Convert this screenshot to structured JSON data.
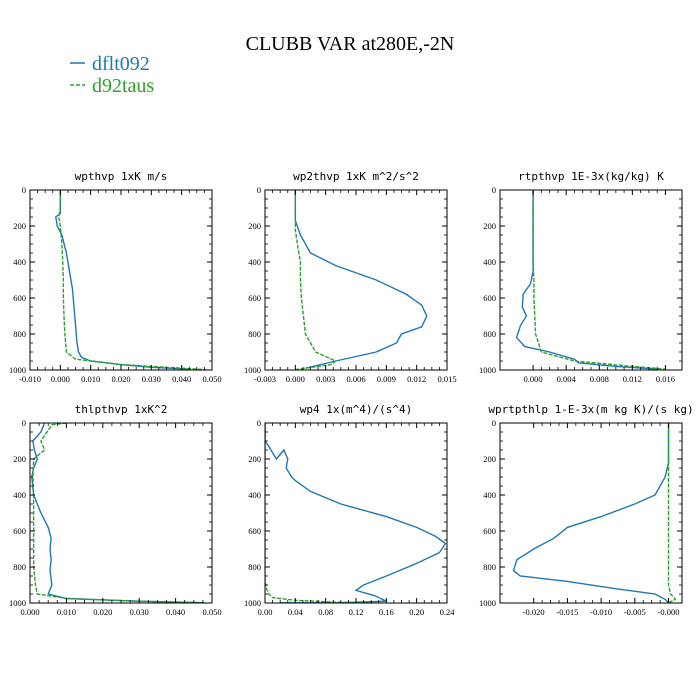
{
  "figure": {
    "title": "CLUBB VAR at280E,-2N",
    "legend": [
      {
        "label": "dflt092",
        "color": "#1f77b4"
      },
      {
        "label": "d92taus",
        "color": "#2ca02c"
      }
    ]
  },
  "chart_data": [
    {
      "type": "line",
      "title": "wpthvp  1xK m/s",
      "xlim": [
        -0.01,
        0.05
      ],
      "ylim": [
        1000,
        0
      ],
      "xticks": [
        -0.01,
        0.0,
        0.01,
        0.02,
        0.03,
        0.04,
        0.05
      ],
      "xtick_labels": [
        "-0.010",
        "0.000",
        "0.010",
        "0.020",
        "0.030",
        "0.040",
        "0.050"
      ],
      "yticks": [
        0,
        200,
        400,
        600,
        800,
        1000
      ],
      "ytick_labels": [
        "0",
        "200",
        "400",
        "600",
        "800",
        "1000"
      ],
      "series": [
        {
          "name": "dflt092",
          "color": "#1f77b4",
          "dash": "solid",
          "x": [
            0.0,
            0.0,
            0.0,
            -0.0015,
            -0.001,
            0.0005,
            0.002,
            0.003,
            0.004,
            0.0045,
            0.005,
            0.0055,
            0.006,
            0.007,
            0.01,
            0.02,
            0.03,
            0.042
          ],
          "y": [
            0,
            50,
            130,
            150,
            200,
            250,
            350,
            450,
            550,
            650,
            750,
            850,
            900,
            930,
            950,
            970,
            985,
            995
          ]
        },
        {
          "name": "d92taus",
          "color": "#2ca02c",
          "dash": "dashed",
          "x": [
            0.0,
            0.0,
            -0.0005,
            0.0,
            0.0005,
            0.0008,
            0.001,
            0.001,
            0.0012,
            0.0015,
            0.002,
            0.005,
            0.02,
            0.04,
            0.048
          ],
          "y": [
            0,
            100,
            150,
            200,
            300,
            400,
            500,
            600,
            700,
            800,
            900,
            940,
            970,
            990,
            998
          ]
        }
      ]
    },
    {
      "type": "line",
      "title": "wp2thvp  1xK m^2/s^2",
      "xlim": [
        -0.003,
        0.015
      ],
      "ylim": [
        1000,
        0
      ],
      "xticks": [
        -0.003,
        0.0,
        0.003,
        0.006,
        0.009,
        0.012,
        0.015
      ],
      "xtick_labels": [
        "-0.003",
        "0.000",
        "0.003",
        "0.006",
        "0.009",
        "0.012",
        "0.015"
      ],
      "yticks": [
        0,
        200,
        400,
        600,
        800,
        1000
      ],
      "ytick_labels": [
        "0",
        "200",
        "400",
        "600",
        "800",
        "1000"
      ],
      "series": [
        {
          "name": "dflt092",
          "color": "#1f77b4",
          "dash": "solid",
          "x": [
            0.0,
            0.0,
            0.0,
            0.0005,
            0.0015,
            0.004,
            0.008,
            0.011,
            0.0125,
            0.013,
            0.0125,
            0.0105,
            0.01,
            0.008,
            0.004,
            0.001
          ],
          "y": [
            0,
            100,
            170,
            250,
            350,
            420,
            500,
            580,
            640,
            700,
            760,
            800,
            850,
            900,
            950,
            990
          ]
        },
        {
          "name": "d92taus",
          "color": "#2ca02c",
          "dash": "dashed",
          "x": [
            0.0,
            0.0,
            0.0,
            0.0002,
            0.0005,
            0.0005,
            0.0006,
            0.0008,
            0.001,
            0.002,
            0.004,
            0.0035,
            0.001,
            0.0
          ],
          "y": [
            0,
            150,
            220,
            300,
            400,
            500,
            600,
            700,
            800,
            900,
            950,
            970,
            990,
            998
          ]
        }
      ]
    },
    {
      "type": "line",
      "title": "rtpthvp  1E-3x(kg/kg) K",
      "xlim": [
        -0.004,
        0.018
      ],
      "ylim": [
        1000,
        0
      ],
      "xticks": [
        0.0,
        0.004,
        0.008,
        0.012,
        0.016
      ],
      "xtick_labels": [
        "0.000",
        "0.004",
        "0.008",
        "0.012",
        "0.016"
      ],
      "yticks": [
        0,
        200,
        400,
        600,
        800,
        1000
      ],
      "ytick_labels": [
        "0",
        "200",
        "400",
        "600",
        "800",
        "1000"
      ],
      "series": [
        {
          "name": "dflt092",
          "color": "#1f77b4",
          "dash": "solid",
          "x": [
            0.0,
            0.0,
            0.0,
            -0.0003,
            -0.0012,
            -0.0013,
            -0.0008,
            -0.0015,
            -0.002,
            -0.001,
            0.002,
            0.005,
            0.0055,
            0.01,
            0.015
          ],
          "y": [
            0,
            200,
            450,
            520,
            580,
            650,
            700,
            750,
            820,
            870,
            900,
            940,
            960,
            980,
            995
          ]
        },
        {
          "name": "d92taus",
          "color": "#2ca02c",
          "dash": "dashed",
          "x": [
            0.0,
            0.0,
            0.0,
            0.0001,
            0.0001,
            0.0002,
            0.0003,
            0.001,
            0.005,
            0.012,
            0.016
          ],
          "y": [
            0,
            200,
            400,
            500,
            600,
            700,
            800,
            900,
            950,
            980,
            995
          ]
        }
      ]
    },
    {
      "type": "line",
      "title": "thlpthvp  1xK^2",
      "xlim": [
        0.0,
        0.05
      ],
      "ylim": [
        1000,
        0
      ],
      "xticks": [
        0.0,
        0.01,
        0.02,
        0.03,
        0.04,
        0.05
      ],
      "xtick_labels": [
        "0.000",
        "0.010",
        "0.020",
        "0.030",
        "0.040",
        "0.050"
      ],
      "yticks": [
        0,
        200,
        400,
        600,
        800,
        1000
      ],
      "ytick_labels": [
        "0",
        "200",
        "400",
        "600",
        "800",
        "1000"
      ],
      "series": [
        {
          "name": "dflt092",
          "color": "#1f77b4",
          "dash": "solid",
          "x": [
            0.004,
            0.003,
            0.0008,
            0.0012,
            0.002,
            0.001,
            0.0005,
            0.001,
            0.003,
            0.005,
            0.0058,
            0.0055,
            0.0058,
            0.0055,
            0.006,
            0.005,
            0.01,
            0.03,
            0.047
          ],
          "y": [
            0,
            50,
            100,
            150,
            200,
            250,
            300,
            400,
            500,
            580,
            640,
            700,
            760,
            820,
            900,
            950,
            975,
            990,
            998
          ]
        },
        {
          "name": "d92taus",
          "color": "#2ca02c",
          "dash": "dashed",
          "x": [
            0.01,
            0.006,
            0.003,
            0.004,
            0.001,
            0.0008,
            0.001,
            0.001,
            0.001,
            0.001,
            0.001,
            0.0015,
            0.002,
            0.01,
            0.03,
            0.048
          ],
          "y": [
            0,
            10,
            100,
            150,
            200,
            300,
            400,
            500,
            600,
            700,
            800,
            900,
            950,
            975,
            990,
            998
          ]
        }
      ]
    },
    {
      "type": "line",
      "title": "wp4  1x(m^4)/(s^4)",
      "xlim": [
        0.0,
        0.24
      ],
      "ylim": [
        1000,
        0
      ],
      "xticks": [
        0.0,
        0.04,
        0.08,
        0.12,
        0.16,
        0.2,
        0.24
      ],
      "xtick_labels": [
        "0.00",
        "0.04",
        "0.08",
        "0.12",
        "0.16",
        "0.20",
        "0.24"
      ],
      "yticks": [
        0,
        200,
        400,
        600,
        800,
        1000
      ],
      "ytick_labels": [
        "0",
        "200",
        "400",
        "600",
        "800",
        "1000"
      ],
      "series": [
        {
          "name": "dflt092",
          "color": "#1f77b4",
          "dash": "solid",
          "x": [
            0.0,
            0.0,
            0.005,
            0.015,
            0.025,
            0.03,
            0.028,
            0.035,
            0.04,
            0.06,
            0.1,
            0.16,
            0.2,
            0.225,
            0.238,
            0.23,
            0.2,
            0.16,
            0.13,
            0.12,
            0.145,
            0.16,
            0.1,
            0.02
          ],
          "y": [
            0,
            100,
            130,
            200,
            150,
            200,
            250,
            300,
            320,
            380,
            450,
            520,
            580,
            630,
            670,
            720,
            780,
            850,
            900,
            930,
            960,
            990,
            998,
            999
          ]
        },
        {
          "name": "d92taus",
          "color": "#2ca02c",
          "dash": "dashed",
          "x": [
            0.0,
            0.0,
            0.0,
            0.0,
            0.0,
            0.0,
            0.002,
            0.005,
            0.01,
            0.04,
            0.09,
            0.14
          ],
          "y": [
            0,
            200,
            400,
            600,
            800,
            880,
            920,
            950,
            970,
            985,
            995,
            999
          ]
        }
      ]
    },
    {
      "type": "line",
      "title": "wprtpthlp  1-E-3x(m kg K)/(s kg)",
      "xlim": [
        -0.025,
        0.002
      ],
      "ylim": [
        1000,
        0
      ],
      "xticks": [
        -0.02,
        -0.015,
        -0.01,
        -0.005,
        0.0
      ],
      "xtick_labels": [
        "-0.020",
        "-0.015",
        "-0.010",
        "-0.005",
        "-0.000"
      ],
      "yticks": [
        0,
        200,
        400,
        600,
        800,
        1000
      ],
      "ytick_labels": [
        "0",
        "200",
        "400",
        "600",
        "800",
        "1000"
      ],
      "series": [
        {
          "name": "dflt092",
          "color": "#1f77b4",
          "dash": "solid",
          "x": [
            0.0,
            0.0,
            0.0,
            -0.0005,
            -0.002,
            -0.005,
            -0.01,
            -0.015,
            -0.017,
            -0.02,
            -0.0225,
            -0.023,
            -0.022,
            -0.015,
            -0.008,
            -0.002,
            -0.0005,
            0.0
          ],
          "y": [
            0,
            100,
            220,
            300,
            400,
            450,
            520,
            580,
            640,
            700,
            760,
            820,
            850,
            880,
            920,
            950,
            980,
            998
          ]
        },
        {
          "name": "d92taus",
          "color": "#2ca02c",
          "dash": "dashed",
          "x": [
            0.0,
            0.0,
            0.0,
            0.0,
            0.0,
            0.0,
            0.0003,
            0.0008,
            0.001,
            0.0005,
            0.0
          ],
          "y": [
            0,
            200,
            400,
            600,
            800,
            900,
            950,
            970,
            980,
            990,
            998
          ]
        }
      ]
    }
  ]
}
